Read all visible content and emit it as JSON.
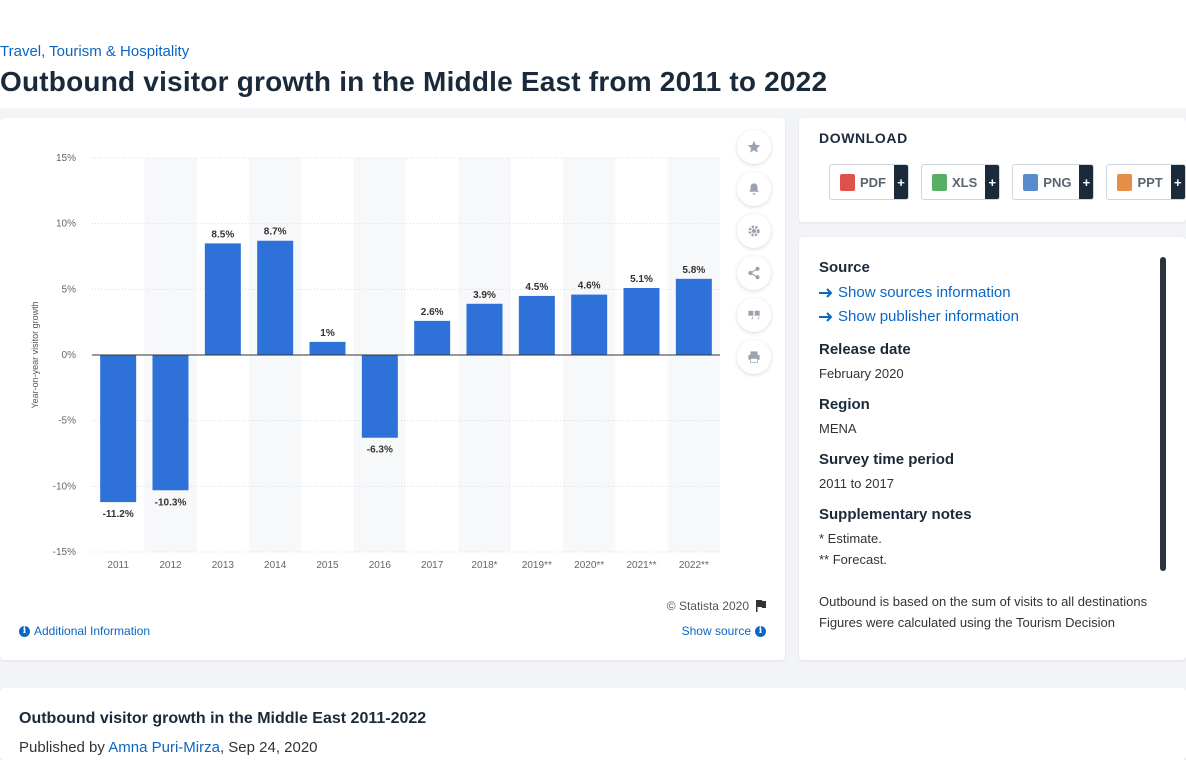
{
  "breadcrumb": "Travel, Tourism & Hospitality",
  "page_title": "Outbound visitor growth in the Middle East from 2011 to 2022",
  "chart_data": {
    "type": "bar",
    "categories": [
      "2011",
      "2012",
      "2013",
      "2014",
      "2015",
      "2016",
      "2017",
      "2018*",
      "2019**",
      "2020**",
      "2021**",
      "2022**"
    ],
    "values": [
      -11.2,
      -10.3,
      8.5,
      8.7,
      1,
      -6.3,
      2.6,
      3.9,
      4.5,
      4.6,
      5.1,
      5.8
    ],
    "value_labels": [
      "-11.2%",
      "-10.3%",
      "8.5%",
      "8.7%",
      "1%",
      "-6.3%",
      "2.6%",
      "3.9%",
      "4.5%",
      "4.6%",
      "5.1%",
      "5.8%"
    ],
    "title": "",
    "xlabel": "",
    "ylabel": "Year-on-year visitor growth",
    "ylim": [
      -15,
      15
    ],
    "yticks": [
      15,
      10,
      5,
      0,
      -5,
      -10,
      -15
    ],
    "ytick_labels": [
      "15%",
      "10%",
      "5%",
      "0%",
      "-5%",
      "-10%",
      "-15%"
    ],
    "bar_color": "#2e72d9",
    "grid": true
  },
  "chart_footer": {
    "credit": "© Statista 2020",
    "additional_info": "Additional Information",
    "show_source": "Show source"
  },
  "download": {
    "title": "DOWNLOAD",
    "buttons": [
      {
        "label": "PDF",
        "plus": "+",
        "icon": "pdf-file-icon",
        "color": "#d9342b"
      },
      {
        "label": "XLS",
        "plus": "+",
        "icon": "xls-file-icon",
        "color": "#3aa14a"
      },
      {
        "label": "PNG",
        "plus": "+",
        "icon": "png-file-icon",
        "color": "#3b78c4"
      },
      {
        "label": "PPT",
        "plus": "+",
        "icon": "ppt-file-icon",
        "color": "#e07a25"
      }
    ]
  },
  "info": {
    "source_label": "Source",
    "show_sources": "Show sources information",
    "show_publisher": "Show publisher information",
    "release_label": "Release date",
    "release_value": "February 2020",
    "region_label": "Region",
    "region_value": "MENA",
    "survey_label": "Survey time period",
    "survey_value": "2011 to 2017",
    "notes_label": "Supplementary notes",
    "note1": "* Estimate.",
    "note2": "** Forecast.",
    "note3": "Outbound is based on the sum of visits to all destinations",
    "note4": "Figures were calculated using the Tourism Decision"
  },
  "bottom": {
    "title": "Outbound visitor growth in the Middle East 2011-2022",
    "published_prefix": "Published by",
    "author": "Amna Puri-Mirza",
    "date": ", Sep 24, 2020"
  }
}
